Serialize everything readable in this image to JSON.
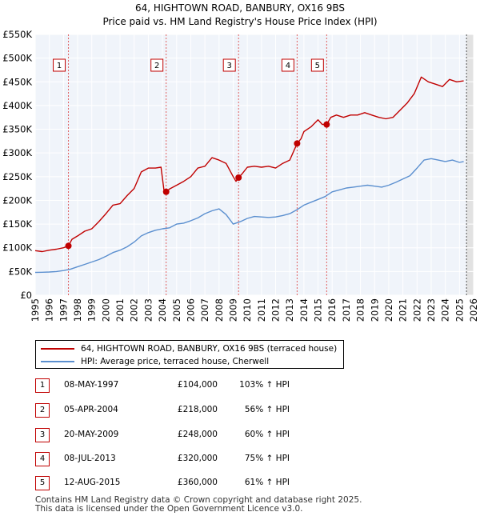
{
  "title_line1": "64, HIGHTOWN ROAD, BANBURY, OX16 9BS",
  "title_line2": "Price paid vs. HM Land Registry's House Price Index (HPI)",
  "chart_data": {
    "type": "line",
    "title": "64, HIGHTOWN ROAD, BANBURY, OX16 9BS — Price paid vs. HM Land Registry's House Price Index (HPI)",
    "xlabel": "",
    "ylabel": "",
    "xlim": [
      1995,
      2026
    ],
    "ylim": [
      0,
      550000
    ],
    "grid": true,
    "y_ticks": [
      0,
      50000,
      100000,
      150000,
      200000,
      250000,
      300000,
      350000,
      400000,
      450000,
      500000,
      550000
    ],
    "y_tick_labels": [
      "£0",
      "£50K",
      "£100K",
      "£150K",
      "£200K",
      "£250K",
      "£300K",
      "£350K",
      "£400K",
      "£450K",
      "£500K",
      "£550K"
    ],
    "x_ticks": [
      1995,
      1996,
      1997,
      1998,
      1999,
      2000,
      2001,
      2002,
      2003,
      2004,
      2005,
      2006,
      2007,
      2008,
      2009,
      2010,
      2011,
      2012,
      2013,
      2014,
      2015,
      2016,
      2017,
      2018,
      2019,
      2020,
      2021,
      2022,
      2023,
      2024,
      2025,
      2026
    ],
    "x_tick_labels": [
      "1995",
      "1996",
      "1997",
      "1998",
      "1999",
      "2000",
      "2001",
      "2002",
      "2003",
      "2004",
      "2005",
      "2006",
      "2007",
      "2008",
      "2009",
      "2010",
      "2011",
      "2012",
      "2013",
      "2014",
      "2015",
      "2016",
      "2017",
      "2018",
      "2019",
      "2020",
      "2021",
      "2022",
      "2023",
      "2024",
      "2025",
      "2026"
    ],
    "series": [
      {
        "name": "64, HIGHTOWN ROAD, BANBURY, OX16 9BS (terraced house)",
        "color": "#c00000",
        "x": [
          1995.0,
          1995.5,
          1996.0,
          1996.5,
          1997.0,
          1997.35,
          1997.6,
          1998.0,
          1998.5,
          1999.0,
          1999.5,
          2000.0,
          2000.5,
          2001.0,
          2001.5,
          2002.0,
          2002.5,
          2003.0,
          2003.5,
          2003.9,
          2004.1,
          2004.26,
          2004.5,
          2005.0,
          2005.5,
          2006.0,
          2006.5,
          2007.0,
          2007.5,
          2008.0,
          2008.5,
          2009.0,
          2009.2,
          2009.38,
          2009.6,
          2010.0,
          2010.5,
          2011.0,
          2011.5,
          2012.0,
          2012.5,
          2013.0,
          2013.52,
          2013.8,
          2014.0,
          2014.5,
          2015.0,
          2015.3,
          2015.61,
          2015.9,
          2016.3,
          2016.8,
          2017.3,
          2017.8,
          2018.3,
          2018.8,
          2019.3,
          2019.8,
          2020.3,
          2020.8,
          2021.3,
          2021.8,
          2022.3,
          2022.8,
          2023.3,
          2023.8,
          2024.3,
          2024.8,
          2025.3
        ],
        "values": [
          94000,
          92000,
          95000,
          97000,
          100000,
          104000,
          118000,
          125000,
          135000,
          140000,
          155000,
          172000,
          190000,
          193000,
          210000,
          225000,
          260000,
          268000,
          268000,
          270000,
          222000,
          218000,
          224000,
          232000,
          240000,
          250000,
          268000,
          272000,
          290000,
          285000,
          278000,
          250000,
          240000,
          248000,
          255000,
          270000,
          272000,
          270000,
          272000,
          268000,
          278000,
          285000,
          320000,
          330000,
          345000,
          355000,
          370000,
          360000,
          360000,
          375000,
          380000,
          375000,
          380000,
          380000,
          385000,
          380000,
          375000,
          372000,
          375000,
          390000,
          405000,
          425000,
          460000,
          450000,
          445000,
          440000,
          455000,
          450000,
          452000
        ]
      },
      {
        "name": "HPI: Average price, terraced house, Cherwell",
        "color": "#5b8fcf",
        "x": [
          1995.0,
          1995.5,
          1996.0,
          1996.5,
          1997.0,
          1997.5,
          1998.0,
          1998.5,
          1999.0,
          1999.5,
          2000.0,
          2000.5,
          2001.0,
          2001.5,
          2002.0,
          2002.5,
          2003.0,
          2003.5,
          2004.0,
          2004.5,
          2005.0,
          2005.5,
          2006.0,
          2006.5,
          2007.0,
          2007.5,
          2008.0,
          2008.5,
          2009.0,
          2009.5,
          2010.0,
          2010.5,
          2011.0,
          2011.5,
          2012.0,
          2012.5,
          2013.0,
          2013.5,
          2014.0,
          2014.5,
          2015.0,
          2015.5,
          2016.0,
          2016.5,
          2017.0,
          2017.5,
          2018.0,
          2018.5,
          2019.0,
          2019.5,
          2020.0,
          2020.5,
          2021.0,
          2021.5,
          2022.0,
          2022.5,
          2023.0,
          2023.5,
          2024.0,
          2024.5,
          2025.0,
          2025.3
        ],
        "values": [
          48000,
          48500,
          49000,
          50000,
          52000,
          55000,
          60000,
          65000,
          70000,
          75000,
          82000,
          90000,
          95000,
          102000,
          112000,
          125000,
          132000,
          137000,
          140000,
          142000,
          150000,
          152000,
          157000,
          163000,
          172000,
          178000,
          182000,
          170000,
          150000,
          155000,
          162000,
          166000,
          165000,
          164000,
          165000,
          168000,
          172000,
          180000,
          190000,
          196000,
          202000,
          208000,
          218000,
          222000,
          226000,
          228000,
          230000,
          232000,
          230000,
          228000,
          232000,
          238000,
          245000,
          252000,
          268000,
          285000,
          288000,
          285000,
          282000,
          285000,
          280000,
          282000
        ]
      }
    ],
    "transactions": [
      {
        "n": "1",
        "date": "08-MAY-1997",
        "x": 1997.35,
        "price": 104000,
        "price_label": "£104,000",
        "hpi": "103% ↑ HPI"
      },
      {
        "n": "2",
        "date": "05-APR-2004",
        "x": 2004.26,
        "price": 218000,
        "price_label": "£218,000",
        "hpi": "56% ↑ HPI"
      },
      {
        "n": "3",
        "date": "20-MAY-2009",
        "x": 2009.38,
        "price": 248000,
        "price_label": "£248,000",
        "hpi": "60% ↑ HPI"
      },
      {
        "n": "4",
        "date": "08-JUL-2013",
        "x": 2013.52,
        "price": 320000,
        "price_label": "£320,000",
        "hpi": "75% ↑ HPI"
      },
      {
        "n": "5",
        "date": "12-AUG-2015",
        "x": 2015.61,
        "price": 360000,
        "price_label": "£360,000",
        "hpi": "61% ↑ HPI"
      }
    ],
    "forecast_start": 2025.5
  },
  "legend": {
    "property_label": "64, HIGHTOWN ROAD, BANBURY, OX16 9BS (terraced house)",
    "hpi_label": "HPI: Average price, terraced house, Cherwell",
    "property_color": "#c00000",
    "hpi_color": "#5b8fcf"
  },
  "footer_line1": "Contains HM Land Registry data © Crown copyright and database right 2025.",
  "footer_line2": "This data is licensed under the Open Government Licence v3.0."
}
